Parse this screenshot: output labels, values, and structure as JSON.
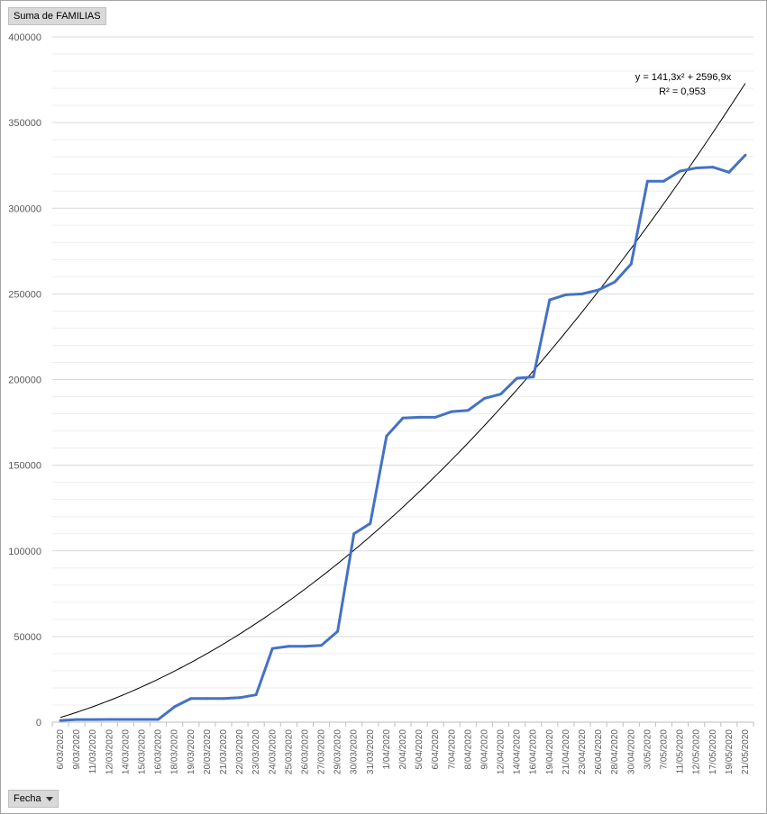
{
  "field_buttons": {
    "value_field": "Suma de FAMILIAS",
    "axis_field": "Fecha"
  },
  "colors": {
    "series": "#4472c4",
    "trendline": "#000000",
    "gridline": "#d9d9d9",
    "minor_gridline": "#eeeeee"
  },
  "chart_data": {
    "type": "line",
    "title": "",
    "xlabel": "",
    "ylabel": "",
    "ylim": [
      0,
      400000
    ],
    "y_ticks": [
      "0",
      "50000",
      "100000",
      "150000",
      "200000",
      "250000",
      "300000",
      "350000",
      "400000"
    ],
    "grid": true,
    "legend": "none",
    "x": [
      "6/03/2020",
      "9/03/2020",
      "11/03/2020",
      "12/03/2020",
      "14/03/2020",
      "15/03/2020",
      "16/03/2020",
      "18/03/2020",
      "19/03/2020",
      "20/03/2020",
      "21/03/2020",
      "22/03/2020",
      "23/03/2020",
      "24/03/2020",
      "25/03/2020",
      "26/03/2020",
      "27/03/2020",
      "29/03/2020",
      "30/03/2020",
      "31/03/2020",
      "1/04/2020",
      "2/04/2020",
      "5/04/2020",
      "6/04/2020",
      "7/04/2020",
      "8/04/2020",
      "9/04/2020",
      "12/04/2020",
      "14/04/2020",
      "16/04/2020",
      "19/04/2020",
      "21/04/2020",
      "23/04/2020",
      "26/04/2020",
      "28/04/2020",
      "30/04/2020",
      "3/05/2020",
      "7/05/2020",
      "11/05/2020",
      "12/05/2020",
      "17/05/2020",
      "19/05/2020",
      "21/05/2020"
    ],
    "series": [
      {
        "values": [
          1000,
          1500,
          1500,
          1600,
          1600,
          1600,
          1600,
          9000,
          13800,
          13800,
          13800,
          14300,
          16000,
          43000,
          44300,
          44300,
          44800,
          53000,
          110000,
          116000,
          167000,
          177500,
          178000,
          178000,
          181300,
          182000,
          189000,
          191500,
          200800,
          201500,
          246500,
          249500,
          250000,
          252300,
          257000,
          267500,
          315800,
          315800,
          321700,
          323500,
          324000,
          321000,
          331000
        ]
      }
    ],
    "trendline": {
      "type": "polynomial",
      "equation_text": "y = 141,3x² + 2596,9x",
      "r2_text": "R² = 0,953",
      "a": 141.3,
      "b": 2596.9
    }
  }
}
